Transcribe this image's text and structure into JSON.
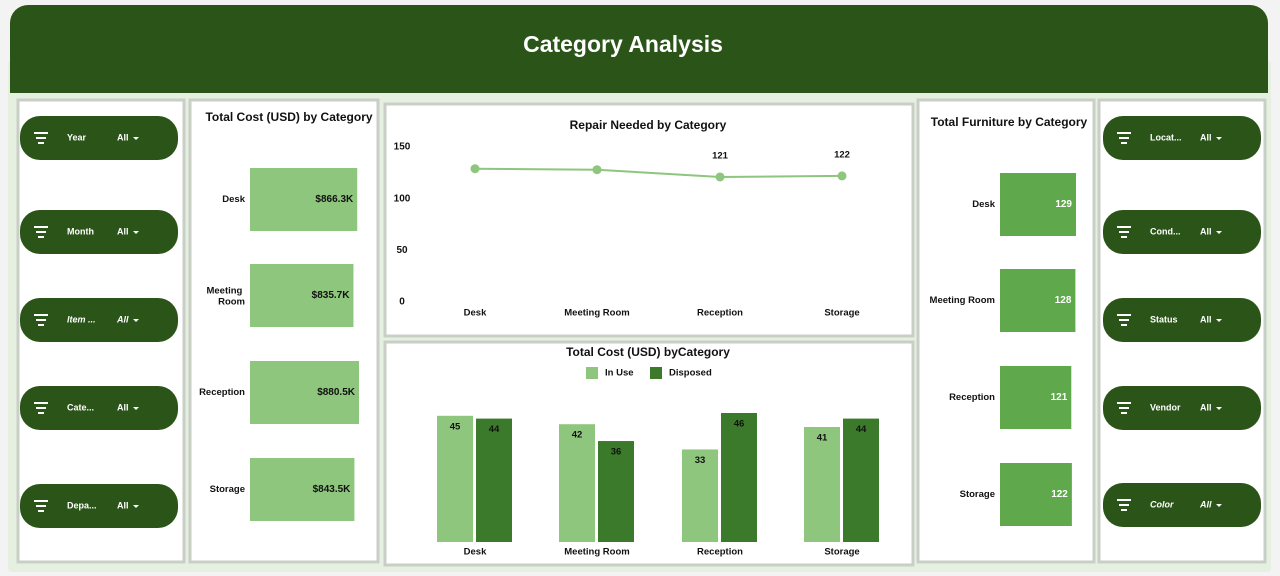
{
  "header": {
    "title": "Category Analysis"
  },
  "filters": {
    "left": [
      {
        "label": "Year",
        "value": "All"
      },
      {
        "label": "Month",
        "value": "All"
      },
      {
        "label": "Item ...",
        "value": "All",
        "italic": true
      },
      {
        "label": "Cate...",
        "value": "All"
      },
      {
        "label": "Depa...",
        "value": "All"
      }
    ],
    "right": [
      {
        "label": "Locat...",
        "value": "All"
      },
      {
        "label": "Cond...",
        "value": "All"
      },
      {
        "label": "Status",
        "value": "All"
      },
      {
        "label": "Vendor",
        "value": "All"
      },
      {
        "label": "Color",
        "value": "All",
        "italic": true
      }
    ]
  },
  "chart_data": [
    {
      "type": "hbar",
      "title": "Total Cost (USD) by Category",
      "categories": [
        "Desk",
        "Meeting Room",
        "Reception",
        "Storage"
      ],
      "values": [
        866300,
        835700,
        880500,
        843500
      ],
      "value_labels": [
        "$866.3K",
        "$835.7K",
        "$880.5K",
        "$843.5K"
      ],
      "color": "#8dc67c"
    },
    {
      "type": "line",
      "title": "Repair Needed by Category",
      "categories": [
        "Desk",
        "Meeting Room",
        "Reception",
        "Storage"
      ],
      "values": [
        129,
        128,
        121,
        122
      ],
      "data_labels": [
        false,
        false,
        true,
        true
      ],
      "ylim": [
        0,
        150
      ],
      "yticks": [
        0,
        50,
        100,
        150
      ],
      "color": "#8dc67c"
    },
    {
      "type": "grouped_bar",
      "title": "Total Cost (USD) byCategory",
      "categories": [
        "Desk",
        "Meeting Room",
        "Reception",
        "Storage"
      ],
      "series": [
        {
          "name": "In Use",
          "color": "#8dc67c",
          "values": [
            45,
            42,
            33,
            41
          ]
        },
        {
          "name": "Disposed",
          "color": "#3b7a2b",
          "values": [
            44,
            36,
            46,
            44
          ]
        }
      ]
    },
    {
      "type": "hbar",
      "title": "Total Furniture by Category",
      "categories": [
        "Desk",
        "Meeting Room",
        "Reception",
        "Storage"
      ],
      "values": [
        129,
        128,
        121,
        122
      ],
      "color": "#5fa84b",
      "label_color": "#ffffff"
    }
  ]
}
